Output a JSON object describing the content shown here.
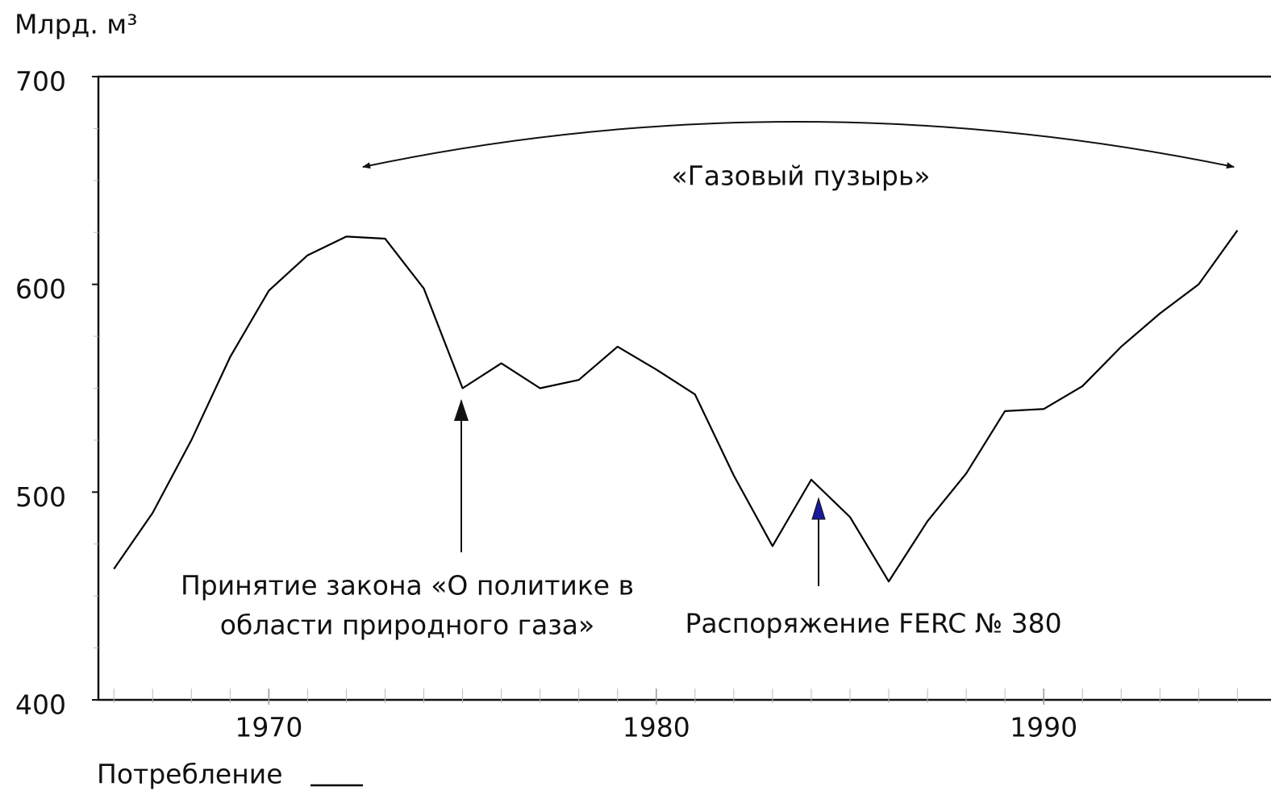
{
  "chart_data": {
    "type": "line",
    "y_label": "Млрд. м³",
    "x": [
      1966,
      1967,
      1968,
      1969,
      1970,
      1971,
      1972,
      1973,
      1974,
      1975,
      1976,
      1977,
      1978,
      1979,
      1980,
      1981,
      1982,
      1983,
      1984,
      1985,
      1986,
      1987,
      1988,
      1989,
      1990,
      1991,
      1992,
      1993,
      1994,
      1995
    ],
    "series": [
      {
        "name": "Потребление",
        "color": "#000000",
        "values": [
          463,
          490,
          525,
          565,
          597,
          614,
          623,
          622,
          598,
          550,
          562,
          550,
          554,
          570,
          559,
          547,
          508,
          474,
          506,
          488,
          457,
          486,
          509,
          539,
          540,
          551,
          570,
          586,
          600,
          626
        ]
      }
    ],
    "xlim": [
      1965.6,
      1995.7
    ],
    "xticks": [
      1970,
      1980,
      1990
    ],
    "x_minor_ticks": [
      1966,
      1967,
      1968,
      1969,
      1970,
      1971,
      1972,
      1973,
      1974,
      1975,
      1976,
      1977,
      1978,
      1979,
      1980,
      1981,
      1982,
      1983,
      1984,
      1985,
      1986,
      1987,
      1988,
      1989,
      1990,
      1991,
      1992,
      1993,
      1994,
      1995
    ],
    "ylim": [
      400,
      700
    ],
    "yticks": [
      400,
      500,
      600,
      700
    ],
    "y_minor_ticks": [
      425,
      450,
      475,
      525,
      550,
      575,
      625,
      650,
      675
    ],
    "annotations": [
      {
        "text": "«Газовый пузырь»"
      },
      {
        "lines": [
          "Принятие закона «О политике в",
          "области природного газа»"
        ]
      },
      {
        "text": "Распоряжение FERC № 380"
      }
    ],
    "legend": "bottom-left"
  }
}
